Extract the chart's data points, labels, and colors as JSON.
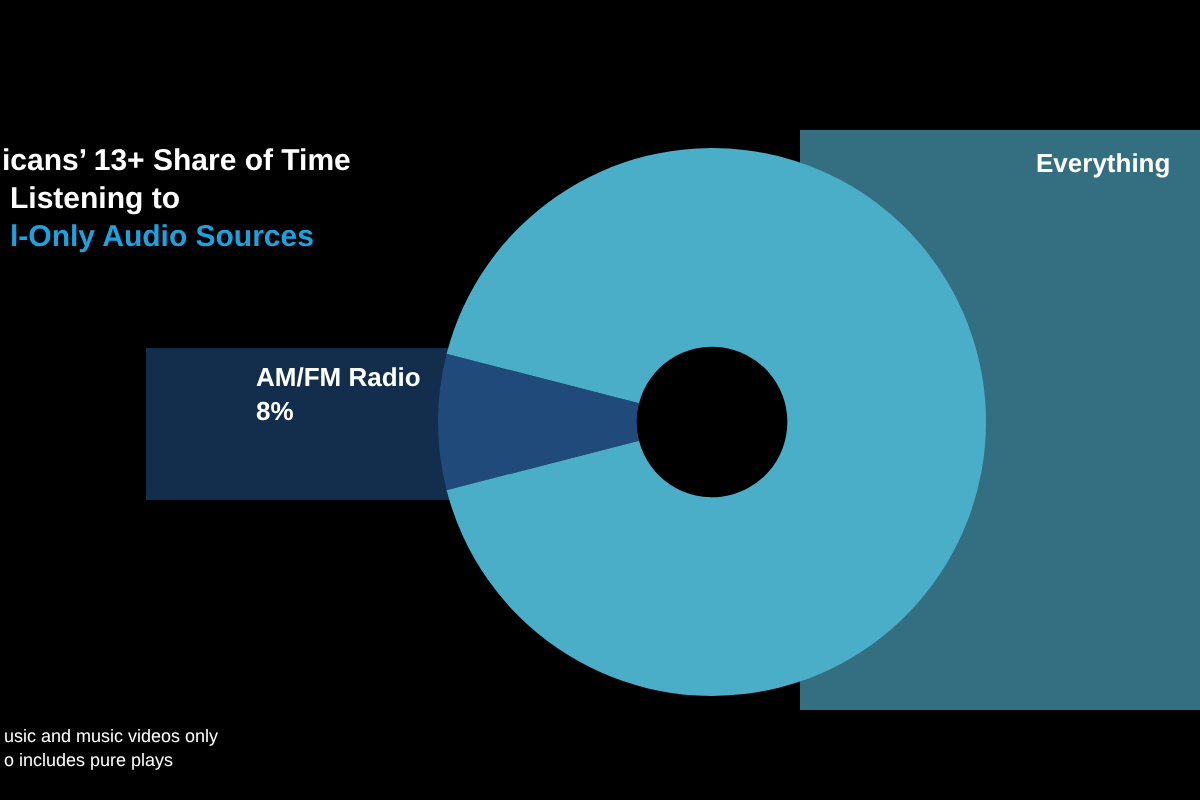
{
  "chart_data": {
    "type": "donut",
    "subtitle": "icans’ 13+ Share of Time\nListening to\nl-Only Audio Sources",
    "categories": [
      "AM/FM Radio",
      "Everything"
    ],
    "values": [
      8,
      92
    ],
    "colors": [
      "#1f4a7a",
      "#4aaec8"
    ],
    "value_labels": [
      "8%",
      null
    ],
    "annotations": [
      "usic and music videos only",
      "o includes pure plays"
    ]
  }
}
